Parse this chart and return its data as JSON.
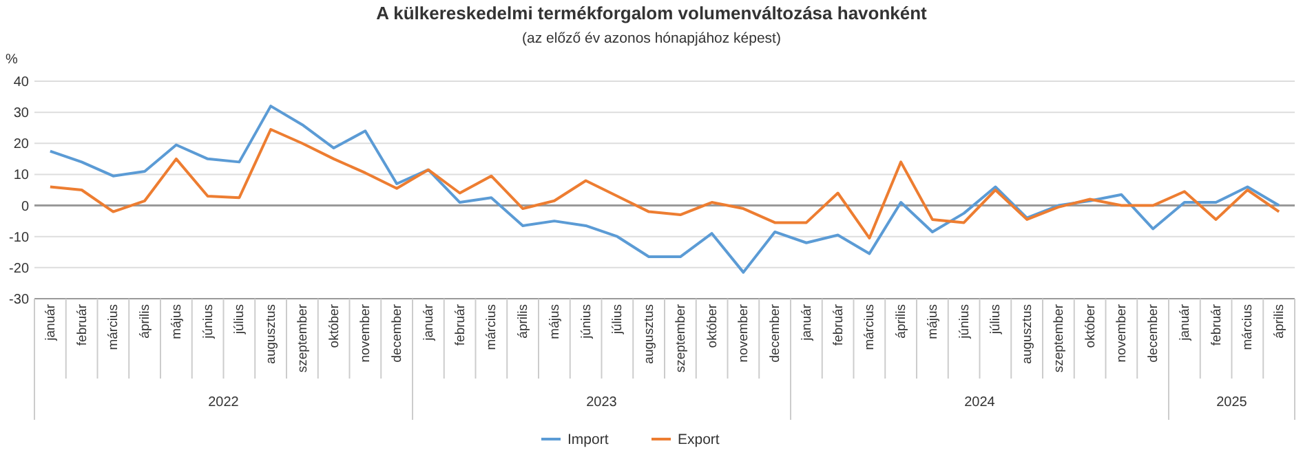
{
  "chart_data": {
    "type": "line",
    "title": "A külkereskedelmi termékforgalom volumenváltozása havonként",
    "subtitle": "(az előző év azonos hónapjához képest)",
    "ylabel": "%",
    "categories": [
      "január",
      "február",
      "március",
      "április",
      "május",
      "június",
      "július",
      "augusztus",
      "szeptember",
      "október",
      "november",
      "december",
      "január",
      "február",
      "március",
      "április",
      "május",
      "június",
      "július",
      "augusztus",
      "szeptember",
      "október",
      "november",
      "december",
      "január",
      "február",
      "március",
      "április",
      "május",
      "június",
      "július",
      "augusztus",
      "szeptember",
      "október",
      "november",
      "december",
      "január",
      "február",
      "március",
      "április"
    ],
    "annotations": [
      "2022",
      "2023",
      "2024",
      "2025"
    ],
    "series": [
      {
        "name": "Import",
        "color": "#5b9bd5",
        "values": [
          17.5,
          14,
          9.5,
          11,
          19.5,
          15,
          14,
          32,
          26,
          18.5,
          24,
          7,
          11.5,
          1,
          2.5,
          -6.5,
          -5,
          -6.5,
          -10,
          -16.5,
          -16.5,
          -9,
          -21.5,
          -8.5,
          -12,
          -9.5,
          -15.5,
          1,
          -8.5,
          -2.5,
          6,
          -4,
          0,
          1.5,
          3.5,
          -7.5,
          1,
          1,
          6,
          0
        ]
      },
      {
        "name": "Export",
        "color": "#ed7d31",
        "values": [
          6,
          5,
          -2,
          1.5,
          15,
          3,
          2.5,
          24.5,
          20,
          15,
          10.5,
          5.5,
          11.5,
          4,
          9.5,
          -1,
          1.5,
          8,
          3,
          -2,
          -3,
          1,
          -1,
          -5.5,
          -5.5,
          4,
          -10.5,
          14,
          -4.5,
          -5.5,
          5,
          -4.5,
          -0.5,
          2,
          0,
          0,
          4.5,
          -4.5,
          5,
          -2
        ]
      }
    ],
    "ylim": [
      -30,
      40
    ],
    "yticks": [
      -30,
      -20,
      -10,
      0,
      10,
      20,
      30,
      40
    ],
    "grid": "y",
    "legend": "bottom",
    "marker": "none",
    "line_style": "solid"
  }
}
